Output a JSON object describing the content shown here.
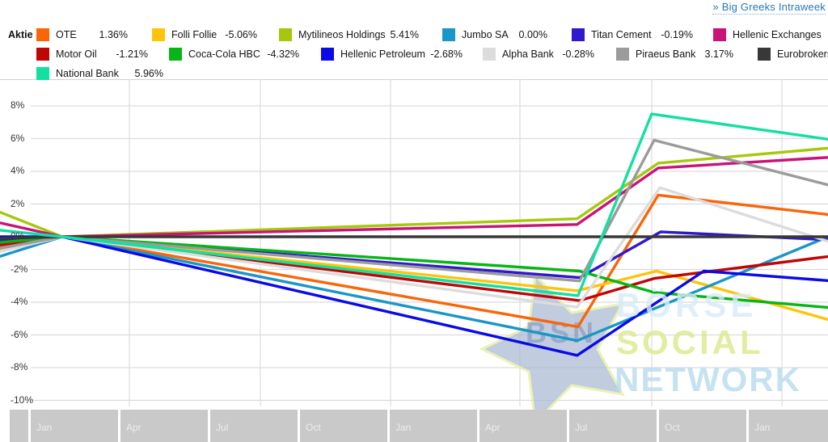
{
  "header": {
    "link_label": "» Big Greeks Intraweek",
    "link_color": "#2878bb"
  },
  "legend": {
    "title": "Aktie",
    "rows": [
      [
        0,
        1,
        2,
        3,
        4,
        5
      ],
      [
        6,
        7,
        8,
        9,
        10,
        11
      ],
      [
        12
      ]
    ]
  },
  "chart_data": {
    "type": "line",
    "title": "",
    "xlabel": "",
    "ylabel": "",
    "grid": true,
    "legend_position": "top",
    "ylim": [
      -10,
      9.6
    ],
    "y_ticks": [
      "8%",
      "6%",
      "4%",
      "2%",
      "0%",
      "-2%",
      "-4%",
      "-6%",
      "-8%",
      "-10%"
    ],
    "x_labels": [
      "Jan",
      "Apr",
      "Jul",
      "Oct",
      "Jan",
      "Apr",
      "Jul",
      "Oct",
      "Jan"
    ],
    "series": [
      {
        "name": "OTE",
        "color": "#f96608",
        "change": "1.36%",
        "points": [
          [
            0,
            -0.55
          ],
          [
            0.075,
            0
          ],
          [
            0.698,
            -5.5
          ],
          [
            0.795,
            2.55
          ],
          [
            1,
            1.36
          ]
        ]
      },
      {
        "name": "Folli Follie",
        "color": "#fcc40a",
        "change": "-5.06%",
        "points": [
          [
            0,
            -0.75
          ],
          [
            0.075,
            0
          ],
          [
            0.697,
            -3.3
          ],
          [
            0.793,
            -2.1
          ],
          [
            1,
            -5.06
          ]
        ]
      },
      {
        "name": "Mytilineos Holdings",
        "color": "#a6c80c",
        "change": "5.41%",
        "points": [
          [
            0,
            1.5
          ],
          [
            0.075,
            0
          ],
          [
            0.697,
            1.1
          ],
          [
            0.795,
            4.5
          ],
          [
            1,
            5.41
          ]
        ]
      },
      {
        "name": "Jumbo SA",
        "color": "#1a96c8",
        "change": "0.00%",
        "points": [
          [
            0,
            -1.2
          ],
          [
            0.075,
            0
          ],
          [
            0.697,
            -6.35
          ],
          [
            1,
            0.0
          ]
        ]
      },
      {
        "name": "Titan Cement",
        "color": "#3018cc",
        "change": "-0.19%",
        "points": [
          [
            0,
            -0.25
          ],
          [
            0.075,
            0
          ],
          [
            0.7,
            -2.5
          ],
          [
            0.798,
            0.3
          ],
          [
            1,
            -0.19
          ]
        ]
      },
      {
        "name": "Hellenic Exchanges",
        "color": "#c81478",
        "change": "",
        "points": [
          [
            0,
            0.85
          ],
          [
            0.075,
            0
          ],
          [
            0.697,
            0.75
          ],
          [
            0.795,
            4.2
          ],
          [
            1,
            4.85
          ]
        ]
      },
      {
        "name": "Motor Oil",
        "color": "#c00505",
        "change": "-1.21%",
        "points": [
          [
            0,
            -0.5
          ],
          [
            0.075,
            0
          ],
          [
            0.7,
            -3.9
          ],
          [
            0.79,
            -2.55
          ],
          [
            1,
            -1.21
          ]
        ]
      },
      {
        "name": "Coca-Cola HBC",
        "color": "#06b616",
        "change": "-4.32%",
        "points": [
          [
            0,
            -0.35
          ],
          [
            0.075,
            0
          ],
          [
            0.7,
            -2.1
          ],
          [
            0.79,
            -3.4
          ],
          [
            1,
            -4.32
          ]
        ]
      },
      {
        "name": "Hellenic Petroleum",
        "color": "#0a0ae6",
        "change": "-2.68%",
        "points": [
          [
            0,
            0.0
          ],
          [
            0.075,
            0
          ],
          [
            0.697,
            -7.25
          ],
          [
            0.85,
            -2.1
          ],
          [
            1,
            -2.68
          ]
        ]
      },
      {
        "name": "Alpha Bank",
        "color": "#dcdcdc",
        "change": "-0.28%",
        "points": [
          [
            0,
            -0.9
          ],
          [
            0.075,
            0
          ],
          [
            0.697,
            -4.3
          ],
          [
            0.797,
            3.0
          ],
          [
            1,
            -0.28
          ]
        ]
      },
      {
        "name": "Piraeus Bank",
        "color": "#9b9b9b",
        "change": "3.17%",
        "points": [
          [
            0,
            -0.7
          ],
          [
            0.075,
            0
          ],
          [
            0.7,
            -2.7
          ],
          [
            0.79,
            5.9
          ],
          [
            1,
            3.17
          ]
        ]
      },
      {
        "name": "Eurobrokers",
        "color": "#383838",
        "change": "",
        "points": [
          [
            0,
            -0.1
          ],
          [
            0.075,
            0
          ],
          [
            1,
            0.0
          ]
        ]
      },
      {
        "name": "National Bank",
        "color": "#12e0a0",
        "change": "5.96%",
        "points": [
          [
            0,
            0.4
          ],
          [
            0.075,
            0
          ],
          [
            0.698,
            -3.6
          ],
          [
            0.787,
            7.5
          ],
          [
            1,
            5.96
          ]
        ]
      }
    ]
  },
  "watermark": {
    "badge": "BSN",
    "line1": "BÖRSE",
    "line2": "SOCIAL",
    "line3": "NETWORK",
    "star_fill": "#aebdd6",
    "star_stroke": "#e3efa0",
    "text_blue": "#b7dbee",
    "text_light_blue": "#d8ecf8",
    "text_green": "#dce98c"
  },
  "axis_colors": {
    "gridline": "#dcdcdc",
    "zero_line": "#8a8a8a",
    "top_border": "#c4c4c4",
    "band_bg": "#c9c9c9"
  }
}
